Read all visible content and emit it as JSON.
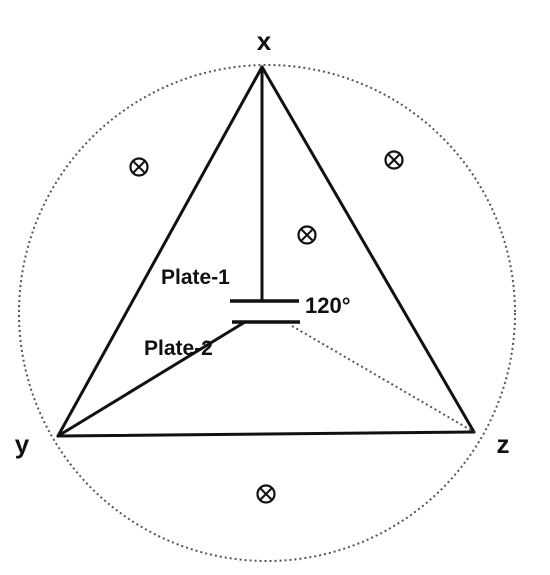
{
  "diagram": {
    "vertices": {
      "x": "x",
      "y": "y",
      "z": "z"
    },
    "plates": {
      "plate_1": "Plate-1",
      "plate_2": "Plate-2"
    },
    "angle_label": "120°",
    "field_symbol": "into-page-field-icon"
  }
}
